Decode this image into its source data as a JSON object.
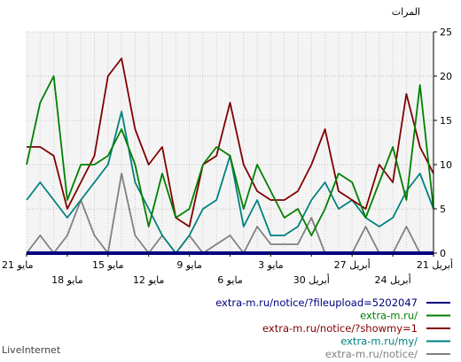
{
  "chart_data": {
    "type": "line",
    "ylabel": "المرات",
    "ylim": [
      0,
      25
    ],
    "y_ticks": [
      0,
      5,
      10,
      15,
      20,
      25
    ],
    "grid": true,
    "x_range": [
      0,
      30
    ],
    "x_ticks": [
      {
        "x": 0,
        "label": "21 مايو"
      },
      {
        "x": 3,
        "label": "18 مايو"
      },
      {
        "x": 6,
        "label": "15 مايو"
      },
      {
        "x": 9,
        "label": "12 مايو"
      },
      {
        "x": 12,
        "label": "9 مايو"
      },
      {
        "x": 15,
        "label": "6 مايو"
      },
      {
        "x": 18,
        "label": "3 مايو"
      },
      {
        "x": 21,
        "label": "30 أبريل"
      },
      {
        "x": 24,
        "label": "27 أبريل"
      },
      {
        "x": 27,
        "label": "24 أبريل"
      },
      {
        "x": 30,
        "label": "21 أبريل"
      }
    ],
    "series": [
      {
        "name": "extra-m.ru/notice/?fileupload=5202047",
        "color": "#000080",
        "x": [
          0,
          30
        ],
        "values": [
          0,
          0
        ]
      },
      {
        "name": "extra-m.ru/",
        "color": "#008000",
        "x": [
          0,
          1,
          2,
          3,
          4,
          5,
          6,
          7,
          8,
          9,
          10,
          11,
          12,
          13,
          14,
          15,
          16,
          17,
          18,
          19,
          20,
          21,
          22,
          23,
          24,
          25,
          26,
          27,
          28,
          29,
          30
        ],
        "values": [
          10,
          17,
          20,
          6,
          10,
          10,
          11,
          14,
          10,
          3,
          9,
          4,
          5,
          10,
          12,
          11,
          5,
          10,
          7,
          4,
          5,
          2,
          5,
          9,
          8,
          4,
          8,
          12,
          6,
          19,
          5
        ]
      },
      {
        "name": "extra-m.ru/notice/?showmy=1",
        "color": "#800000",
        "x": [
          0,
          1,
          2,
          3,
          4,
          5,
          6,
          7,
          8,
          9,
          10,
          11,
          12,
          13,
          14,
          15,
          16,
          17,
          18,
          19,
          20,
          21,
          22,
          23,
          24,
          25,
          26,
          27,
          28,
          29,
          30
        ],
        "values": [
          12,
          12,
          11,
          5,
          8,
          11,
          20,
          22,
          14,
          10,
          12,
          4,
          3,
          10,
          11,
          17,
          10,
          7,
          6,
          6,
          7,
          10,
          14,
          7,
          6,
          5,
          10,
          8,
          18,
          12,
          9
        ]
      },
      {
        "name": "extra-m.ru/my/",
        "color": "#008080",
        "x": [
          0,
          1,
          2,
          3,
          4,
          5,
          6,
          7,
          8,
          9,
          10,
          11,
          12,
          13,
          14,
          15,
          16,
          17,
          18,
          19,
          20,
          21,
          22,
          23,
          24,
          25,
          26,
          27,
          28,
          29,
          30
        ],
        "values": [
          6,
          8,
          6,
          4,
          6,
          8,
          10,
          16,
          8,
          5,
          2,
          0,
          2,
          5,
          6,
          11,
          3,
          6,
          2,
          2,
          3,
          6,
          8,
          5,
          6,
          4,
          3,
          4,
          7,
          9,
          5
        ]
      },
      {
        "name": "extra-m.ru/notice/",
        "color": "#808080",
        "x": [
          0,
          1,
          2,
          3,
          4,
          5,
          6,
          7,
          8,
          9,
          10,
          11,
          12,
          13,
          14,
          15,
          16,
          17,
          18,
          19,
          20,
          21,
          22,
          23,
          24,
          25,
          26,
          27,
          28,
          29,
          30
        ],
        "values": [
          0,
          2,
          0,
          2,
          6,
          2,
          0,
          9,
          2,
          0,
          2,
          0,
          2,
          0,
          1,
          2,
          0,
          3,
          1,
          1,
          1,
          4,
          0,
          0,
          0,
          3,
          0,
          0,
          3,
          0,
          0
        ]
      }
    ]
  },
  "footer": {
    "text": "LiveInternet"
  }
}
